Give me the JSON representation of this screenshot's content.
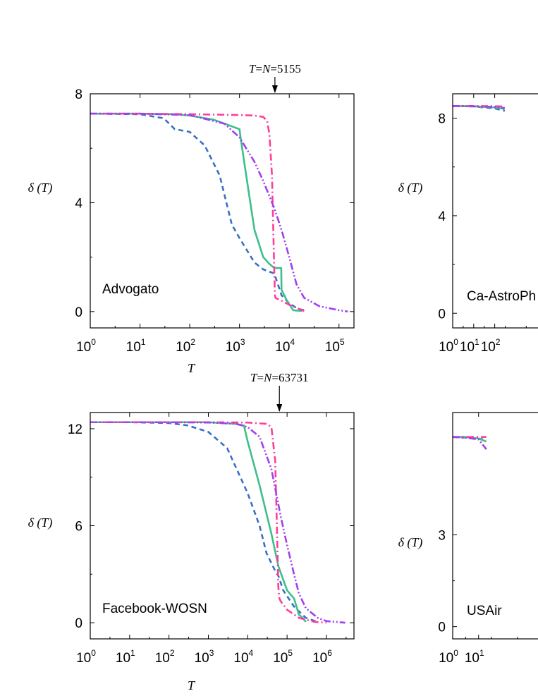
{
  "chart_data": [
    {
      "type": "line",
      "panel_label": "Advogato",
      "annotation": {
        "prefix_T": "T",
        "eq1": "=",
        "prefix_N": "N",
        "eq2": "=",
        "value": "5155",
        "x": 5155
      },
      "xlabel": "T",
      "ylabel": "δ (T)",
      "xscale": "log",
      "xlim": [
        1,
        200000
      ],
      "ylim": [
        -0.6,
        8
      ],
      "xticks": [
        {
          "base": "10",
          "exp": "0"
        },
        {
          "base": "10",
          "exp": "1"
        },
        {
          "base": "10",
          "exp": "2"
        },
        {
          "base": "10",
          "exp": "3"
        },
        {
          "base": "10",
          "exp": "4"
        },
        {
          "base": "10",
          "exp": "5"
        }
      ],
      "yticks": [
        "0",
        "4",
        "8"
      ],
      "series": [
        {
          "color": "#3a6fc4",
          "dash": "dash",
          "x": [
            1,
            10,
            30,
            50,
            100,
            200,
            400,
            700,
            1000,
            2000,
            3000,
            5000,
            7000,
            10000,
            15000,
            20000
          ],
          "y": [
            7.27,
            7.25,
            7.1,
            6.7,
            6.6,
            6.1,
            5.0,
            3.2,
            2.7,
            1.8,
            1.55,
            1.4,
            0.6,
            0.3,
            0.1,
            0.05
          ]
        },
        {
          "color": "#3cbf8a",
          "dash": "solid",
          "x": [
            1,
            10,
            50,
            100,
            300,
            600,
            1000,
            1050,
            1500,
            2000,
            3000,
            4000,
            5000,
            6000,
            6900,
            7000,
            9000,
            12000,
            18000
          ],
          "y": [
            7.27,
            7.27,
            7.25,
            7.2,
            7.05,
            6.85,
            6.7,
            6.4,
            4.5,
            3.0,
            2.0,
            1.75,
            1.6,
            1.6,
            1.6,
            0.8,
            0.4,
            0.05,
            0.02
          ]
        },
        {
          "color": "#ff3d9a",
          "dash": "dashdot",
          "x": [
            1,
            10,
            100,
            1000,
            2000,
            3000,
            3600,
            4000,
            4500,
            5000,
            5155,
            5300,
            7000,
            10000,
            20000
          ],
          "y": [
            7.27,
            7.27,
            7.25,
            7.22,
            7.2,
            7.15,
            7.0,
            6.5,
            5.0,
            1.5,
            0.6,
            0.5,
            0.4,
            0.25,
            0.02
          ]
        },
        {
          "color": "#a040f0",
          "dash": "dashdotdot",
          "x": [
            1,
            10,
            100,
            500,
            1000,
            2000,
            3000,
            5000,
            7000,
            10000,
            14000,
            20000,
            40000,
            100000,
            150000
          ],
          "y": [
            7.27,
            7.27,
            7.22,
            6.9,
            6.4,
            5.5,
            4.8,
            3.8,
            3.0,
            2.0,
            1.0,
            0.5,
            0.2,
            0.05,
            0.0
          ]
        }
      ]
    },
    {
      "type": "line",
      "panel_label": "Ca-AstroPh",
      "ylabel": "δ (T)",
      "xscale": "log",
      "xlim": [
        1,
        200000
      ],
      "ylim": [
        -0.6,
        9
      ],
      "xticks": [
        {
          "base": "10",
          "exp": "0"
        },
        {
          "base": "10",
          "exp": "1"
        },
        {
          "base": "10",
          "exp": "2"
        }
      ],
      "yticks": [
        "0",
        "4",
        "8"
      ],
      "series": [
        {
          "color": "#3a6fc4",
          "dash": "dash",
          "x": [
            1,
            10,
            100,
            300
          ],
          "y": [
            8.5,
            8.48,
            8.4,
            8.3
          ]
        },
        {
          "color": "#3cbf8a",
          "dash": "solid",
          "x": [
            1,
            10,
            100,
            300
          ],
          "y": [
            8.5,
            8.48,
            8.44,
            8.38
          ]
        },
        {
          "color": "#ff3d9a",
          "dash": "dashdot",
          "x": [
            1,
            10,
            100,
            300
          ],
          "y": [
            8.5,
            8.5,
            8.49,
            8.48
          ]
        },
        {
          "color": "#a040f0",
          "dash": "dashdotdot",
          "x": [
            1,
            10,
            100,
            300
          ],
          "y": [
            8.5,
            8.49,
            8.46,
            8.42
          ]
        }
      ]
    },
    {
      "type": "line",
      "panel_label": "Facebook-WOSN",
      "annotation": {
        "prefix_T": "T",
        "eq1": "=",
        "prefix_N": "N",
        "eq2": "=",
        "value": "63731",
        "x": 63731
      },
      "xlabel": "T",
      "ylabel": "δ (T)",
      "xscale": "log",
      "xlim": [
        1,
        5000000
      ],
      "ylim": [
        -1,
        13
      ],
      "xticks": [
        {
          "base": "10",
          "exp": "0"
        },
        {
          "base": "10",
          "exp": "1"
        },
        {
          "base": "10",
          "exp": "2"
        },
        {
          "base": "10",
          "exp": "3"
        },
        {
          "base": "10",
          "exp": "4"
        },
        {
          "base": "10",
          "exp": "5"
        },
        {
          "base": "10",
          "exp": "6"
        }
      ],
      "yticks": [
        "0",
        "6",
        "12"
      ],
      "series": [
        {
          "color": "#3a6fc4",
          "dash": "dash",
          "x": [
            1,
            10,
            100,
            300,
            1000,
            3000,
            10000,
            20000,
            30000,
            50000,
            60000,
            80000,
            150000,
            300000,
            600000
          ],
          "y": [
            12.4,
            12.4,
            12.35,
            12.2,
            11.8,
            10.8,
            8.0,
            6.0,
            4.3,
            3.2,
            2.9,
            2.0,
            1.0,
            0.3,
            0.05
          ]
        },
        {
          "color": "#3cbf8a",
          "dash": "solid",
          "x": [
            1,
            100,
            1000,
            5000,
            8000,
            10000,
            20000,
            40000,
            60000,
            100000,
            150000,
            200000,
            250000,
            300000
          ],
          "y": [
            12.4,
            12.4,
            12.4,
            12.3,
            12.2,
            11.2,
            8.5,
            5.5,
            3.5,
            2.0,
            1.5,
            0.5,
            0.3,
            0.05
          ]
        },
        {
          "color": "#ff3d9a",
          "dash": "dashdot",
          "x": [
            1,
            100,
            1000,
            10000,
            30000,
            40000,
            50000,
            55000,
            60000,
            63731,
            70000,
            100000,
            200000,
            500000,
            1000000
          ],
          "y": [
            12.4,
            12.4,
            12.4,
            12.38,
            12.3,
            12.1,
            10.0,
            6.0,
            2.2,
            1.5,
            1.3,
            0.8,
            0.3,
            0.05,
            0.0
          ]
        },
        {
          "color": "#a040f0",
          "dash": "dashdotdot",
          "x": [
            1,
            100,
            1000,
            5000,
            10000,
            20000,
            40000,
            70000,
            100000,
            150000,
            200000,
            300000,
            600000,
            1000000,
            3000000
          ],
          "y": [
            12.4,
            12.4,
            12.38,
            12.3,
            12.1,
            11.5,
            9.5,
            6.5,
            4.8,
            3.0,
            1.8,
            0.9,
            0.3,
            0.1,
            0.0
          ]
        }
      ]
    },
    {
      "type": "line",
      "panel_label": "USAir",
      "ylabel": "δ (T)",
      "xscale": "log",
      "xlim": [
        1,
        20000
      ],
      "ylim": [
        -0.4,
        7
      ],
      "xticks": [
        {
          "base": "10",
          "exp": "0"
        },
        {
          "base": "10",
          "exp": "1"
        }
      ],
      "yticks": [
        "0",
        "3"
      ],
      "series": [
        {
          "color": "#3a6fc4",
          "dash": "dash",
          "x": [
            1,
            3,
            10,
            20
          ],
          "y": [
            6.2,
            6.18,
            6.15,
            6.1
          ]
        },
        {
          "color": "#3cbf8a",
          "dash": "solid",
          "x": [
            1,
            3,
            10,
            20
          ],
          "y": [
            6.2,
            6.2,
            6.15,
            6.05
          ]
        },
        {
          "color": "#ff3d9a",
          "dash": "dashdot",
          "x": [
            1,
            3,
            10,
            20
          ],
          "y": [
            6.2,
            6.2,
            6.2,
            6.2
          ]
        },
        {
          "color": "#a040f0",
          "dash": "dashdotdot",
          "x": [
            1,
            3,
            10,
            20
          ],
          "y": [
            6.2,
            6.18,
            6.12,
            5.8
          ]
        }
      ]
    }
  ]
}
